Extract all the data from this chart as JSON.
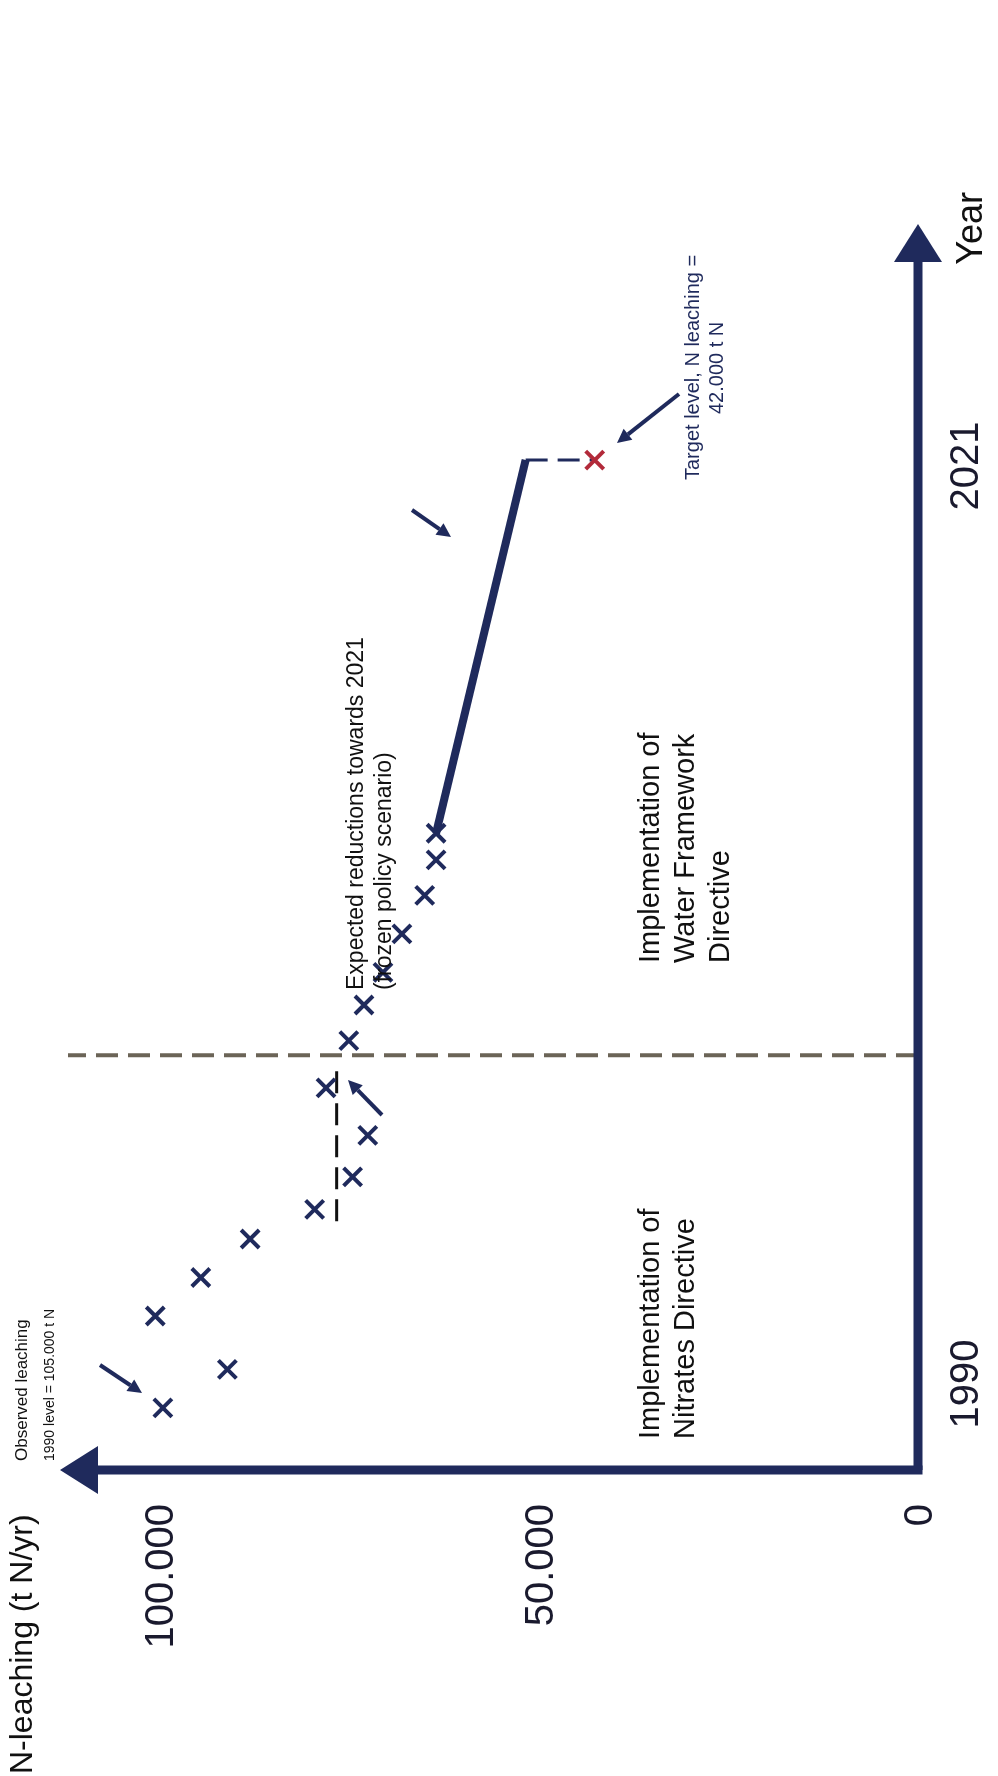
{
  "chart_data": {
    "type": "scatter",
    "ylabel": "Year",
    "xlim": [
      112000,
      0
    ],
    "xticks": [
      {
        "value": 100000,
        "label": "100.000"
      },
      {
        "value": 50000,
        "label": "50.000"
      },
      0
    ],
    "ylim": [
      1987.1,
      2028.9
    ],
    "yticks": [
      1990,
      2021
    ],
    "grid": false,
    "legend": false,
    "marker": "cross",
    "series": [
      {
        "color": "#1f2a5c",
        "x": [
          99500,
          91000,
          100500,
          94500,
          88000,
          79500,
          74500,
          72500,
          78000,
          75000,
          73000,
          70500,
          68000,
          65000,
          63500,
          63500
        ],
        "values": [
          1989.2,
          1990.5,
          1992.3,
          1993.6,
          1994.9,
          1995.9,
          1997.0,
          1998.4,
          2000.0,
          2001.6,
          2002.8,
          2003.9,
          2005.2,
          2006.5,
          2007.7,
          2008.6
        ]
      },
      {
        "type": "line",
        "color": "#1f2a5c",
        "line_style": "solid",
        "marker": "none",
        "x": [
          63500,
          51700
        ],
        "values": [
          2008.6,
          2021.2
        ]
      },
      {
        "type": "line",
        "color": "#1f2a5c",
        "line_style": "dashed",
        "marker": "none",
        "x": [
          51700,
          42600
        ],
        "values": [
          2021.2,
          2021.2
        ]
      },
      {
        "color": "#b22a3a",
        "x": [
          42600
        ],
        "values": [
          2021.2
        ]
      },
      {
        "type": "line",
        "color": "#111111",
        "line_style": "dashed",
        "marker": "none",
        "x": [
          76600,
          76600
        ],
        "values": [
          1995.5,
          2000.7
        ]
      }
    ],
    "ref_lines": [
      {
        "axis": "y",
        "value": 2001.1,
        "color": "#6b6457",
        "line_style": "dashed"
      }
    ],
    "annotations": [
      "Observed leaching",
      "1990 level = 105.000 t N",
      "Expected reductions towards 2021 (frozen policy scenario)",
      "Target level, N leaching = 42.000 t N",
      "Implementation of Nitrates Directive",
      "Implementation of Water Framework Directive",
      "N-leaching (t N/yr)"
    ]
  }
}
